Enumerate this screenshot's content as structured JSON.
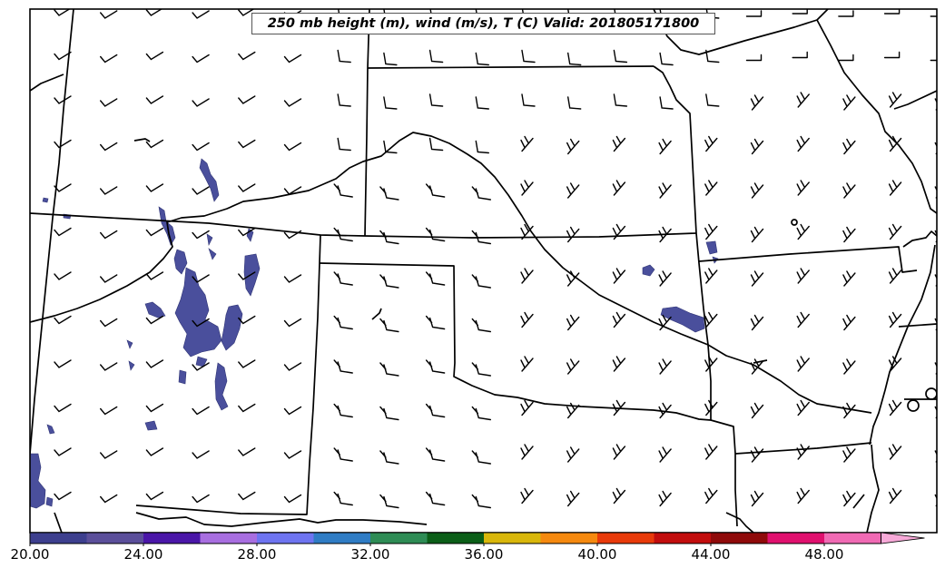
{
  "title": "250 mb height (m), wind (m/s), T (C) Valid: 201805171800",
  "colorbar": {
    "tick_labels": [
      "20.00",
      "24.00",
      "28.00",
      "32.00",
      "36.00",
      "40.00",
      "44.00",
      "48.00"
    ],
    "range": [
      20,
      52
    ],
    "bins": [
      {
        "from": 20,
        "to": 22,
        "color": "#3d3f8e"
      },
      {
        "from": 22,
        "to": 24,
        "color": "#5b4f9a"
      },
      {
        "from": 24,
        "to": 26,
        "color": "#4a16a8"
      },
      {
        "from": 26,
        "to": 28,
        "color": "#a86ee0"
      },
      {
        "from": 28,
        "to": 30,
        "color": "#6e74f0"
      },
      {
        "from": 30,
        "to": 32,
        "color": "#2f7cc4"
      },
      {
        "from": 32,
        "to": 34,
        "color": "#2e8c55"
      },
      {
        "from": 34,
        "to": 36,
        "color": "#0b5e17"
      },
      {
        "from": 36,
        "to": 38,
        "color": "#d9b70b"
      },
      {
        "from": 38,
        "to": 40,
        "color": "#f5890f"
      },
      {
        "from": 40,
        "to": 42,
        "color": "#e83a0a"
      },
      {
        "from": 42,
        "to": 44,
        "color": "#c20d0d"
      },
      {
        "from": 44,
        "to": 46,
        "color": "#8f0a0a"
      },
      {
        "from": 46,
        "to": 48,
        "color": "#e0106e"
      },
      {
        "from": 48,
        "to": 50,
        "color": "#f06ab4"
      },
      {
        "from": 50,
        "to": 52,
        "color": "#f7a9d8"
      }
    ]
  },
  "fill_color": "#4a4f9c",
  "border_color": "#000000"
}
